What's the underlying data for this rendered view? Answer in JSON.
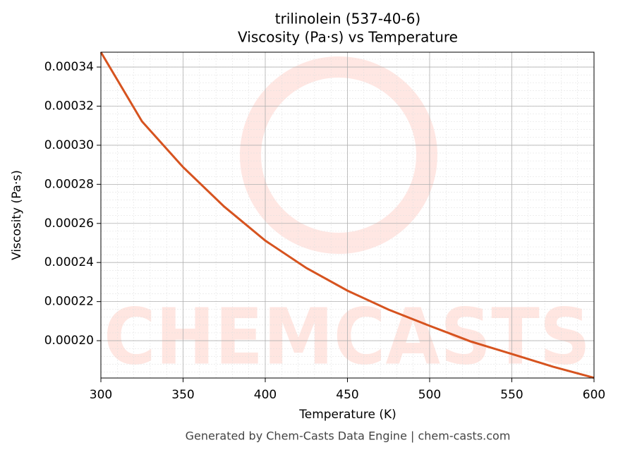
{
  "chart_data": {
    "type": "line",
    "title": "trilinolein (537-40-6)",
    "subtitle": "Viscosity (Pa·s) vs Temperature",
    "x_label": "Temperature (K)",
    "y_label": "Viscosity (Pa·s)",
    "x": [
      300,
      325,
      350,
      375,
      400,
      425,
      450,
      475,
      500,
      525,
      550,
      575,
      600
    ],
    "series": [
      {
        "name": "Viscosity",
        "color": "#d6531f",
        "values": [
          0.0003476,
          0.0003122,
          0.0002888,
          0.0002686,
          0.0002512,
          0.0002372,
          0.0002256,
          0.0002159,
          0.0002076,
          0.0001996,
          0.0001932,
          0.0001867,
          0.000181
        ]
      }
    ],
    "xlim": [
      300,
      600
    ],
    "xticks": [
      300,
      350,
      400,
      450,
      500,
      550,
      600
    ],
    "ylim": [
      0.0001809,
      0.0003476
    ],
    "yticks": [
      {
        "value": 0.0002,
        "label": "0.00020"
      },
      {
        "value": 0.00022,
        "label": "0.00022"
      },
      {
        "value": 0.00024,
        "label": "0.00024"
      },
      {
        "value": 0.00026,
        "label": "0.00026"
      },
      {
        "value": 0.00028,
        "label": "0.00028"
      },
      {
        "value": 0.0003,
        "label": "0.00030"
      },
      {
        "value": 0.00032,
        "label": "0.00032"
      },
      {
        "value": 0.00034,
        "label": "0.00034"
      }
    ],
    "grid": true,
    "footer": "Generated by Chem-Casts Data Engine | chem-casts.com"
  }
}
